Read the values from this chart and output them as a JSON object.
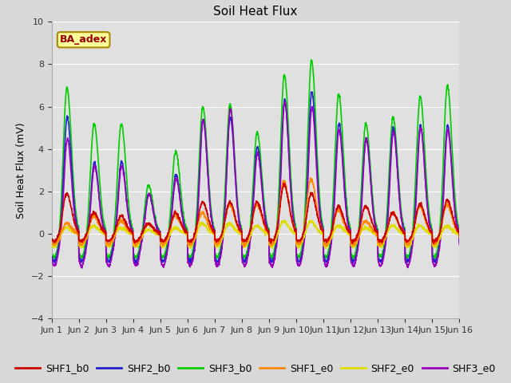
{
  "title": "Soil Heat Flux",
  "ylabel": "Soil Heat Flux (mV)",
  "ylim": [
    -4,
    10
  ],
  "yticks": [
    -4,
    -2,
    0,
    2,
    4,
    6,
    8,
    10
  ],
  "annotation": "BA_adex",
  "series_colors": {
    "SHF1_b0": "#cc0000",
    "SHF2_b0": "#2222cc",
    "SHF3_b0": "#00cc00",
    "SHF1_e0": "#ff8800",
    "SHF2_e0": "#dddd00",
    "SHF3_e0": "#9900bb"
  },
  "n_days": 15,
  "background_color": "#e0e0e0",
  "grid_color": "#ffffff",
  "xtick_labels": [
    "Jun 1",
    "Jun 2",
    "Jun 3",
    "Jun 4",
    "Jun 5",
    "Jun 6",
    "Jun 7",
    "Jun 8",
    "Jun 9",
    "Jun 10",
    "Jun 11",
    "Jun 12",
    "Jun 13",
    "Jun 14",
    "Jun 15",
    "Jun 16"
  ],
  "shf3_b0_peaks": [
    6.9,
    5.2,
    5.2,
    2.3,
    3.9,
    6.0,
    6.1,
    4.8,
    7.5,
    8.2,
    6.6,
    5.2,
    5.5,
    6.5,
    7.0
  ],
  "shf2_b0_peaks": [
    5.5,
    3.4,
    3.4,
    1.9,
    2.8,
    5.4,
    5.5,
    4.1,
    6.3,
    6.7,
    5.2,
    4.5,
    5.0,
    5.1,
    5.1
  ],
  "shf3_e0_peaks": [
    4.5,
    3.2,
    3.2,
    1.9,
    2.6,
    5.4,
    5.9,
    3.8,
    6.2,
    6.0,
    4.9,
    4.5,
    4.8,
    5.0,
    4.9
  ],
  "shf1_b0_peaks": [
    1.9,
    1.0,
    0.85,
    0.5,
    1.0,
    1.5,
    1.5,
    1.5,
    2.3,
    1.9,
    1.3,
    1.3,
    1.0,
    1.4,
    1.6
  ],
  "shf1_e0_peaks": [
    0.5,
    0.85,
    0.6,
    0.45,
    0.9,
    1.0,
    1.4,
    1.4,
    2.5,
    2.6,
    1.1,
    0.6,
    1.0,
    1.3,
    1.4
  ],
  "shf2_e0_peaks": [
    0.3,
    0.4,
    0.3,
    0.2,
    0.3,
    0.5,
    0.5,
    0.4,
    0.6,
    0.6,
    0.4,
    0.3,
    0.4,
    0.4,
    0.4
  ],
  "trough_vals": {
    "SHF1_b0": -0.35,
    "SHF2_b0": -1.3,
    "SHF3_b0": -1.1,
    "SHF1_e0": -0.5,
    "SHF2_e0": -0.6,
    "SHF3_e0": -1.5
  },
  "figsize": [
    6.4,
    4.8
  ],
  "dpi": 100
}
